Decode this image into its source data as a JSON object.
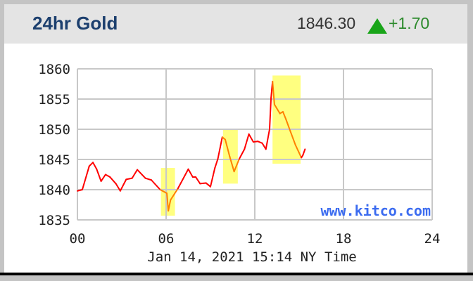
{
  "header": {
    "title": "24hr Gold",
    "price": "1846.30",
    "change": "+1.70",
    "direction_icon": "triangle-up-icon",
    "up_color": "#19a519"
  },
  "chart_data": {
    "type": "line",
    "title": "24hr Gold",
    "xlabel": "Jan 14, 2021 15:14 NY Time",
    "ylabel": "",
    "watermark": "www.kitco.com",
    "xlim": [
      0,
      24
    ],
    "ylim": [
      1835,
      1860
    ],
    "x_ticks": [
      "00",
      "06",
      "12",
      "18",
      "24"
    ],
    "x_tick_values": [
      0,
      6,
      12,
      18,
      24
    ],
    "y_ticks": [
      1835,
      1840,
      1845,
      1850,
      1855,
      1860
    ],
    "grid": true,
    "line_color": "#ff0000",
    "highlight_line_color": "#ff8000",
    "highlight_fill": "#ffff80",
    "series": [
      {
        "x": [
          0,
          0.33,
          0.8,
          1.05,
          1.3,
          1.6,
          1.9,
          2.2,
          2.6,
          2.9,
          3.3,
          3.7,
          4.05,
          4.6,
          5,
          5.6,
          6.05,
          6.15,
          6.3,
          6.8,
          7.5,
          7.8,
          8.0,
          8.3,
          8.7,
          9,
          9.3,
          9.5,
          9.8,
          10,
          10.3,
          10.6,
          10.95,
          11.3,
          11.6,
          11.9,
          12.2,
          12.5,
          12.75,
          13,
          13.1,
          13.2,
          13.33,
          13.7,
          13.9,
          14.1,
          14.4,
          14.75,
          15.15,
          15.25,
          15.4
        ],
        "y": [
          1839.8,
          1840,
          1843.9,
          1844.5,
          1843.4,
          1841.4,
          1842.5,
          1842.1,
          1841,
          1839.8,
          1841.7,
          1841.9,
          1843.3,
          1841.9,
          1841.6,
          1840,
          1839.4,
          1836.5,
          1838.3,
          1840.2,
          1843.4,
          1842.1,
          1842.1,
          1841,
          1841.1,
          1840.5,
          1843.6,
          1845.1,
          1848.7,
          1848.3,
          1845.5,
          1843,
          1845.1,
          1846.7,
          1849.2,
          1847.9,
          1848,
          1847.7,
          1846.7,
          1850,
          1855.2,
          1857.9,
          1854.1,
          1852.6,
          1852.9,
          1851.7,
          1849.7,
          1847.4,
          1845.3,
          1845.7,
          1846.7
        ]
      }
    ],
    "highlights": [
      {
        "x": [
          5.65,
          6.6
        ],
        "y": [
          1835.7,
          1843.6
        ]
      },
      {
        "x": [
          9.85,
          10.85
        ],
        "y": [
          1841,
          1849.9
        ]
      },
      {
        "x": [
          13.2,
          15.1
        ],
        "y": [
          1844.3,
          1858.9
        ]
      }
    ]
  }
}
